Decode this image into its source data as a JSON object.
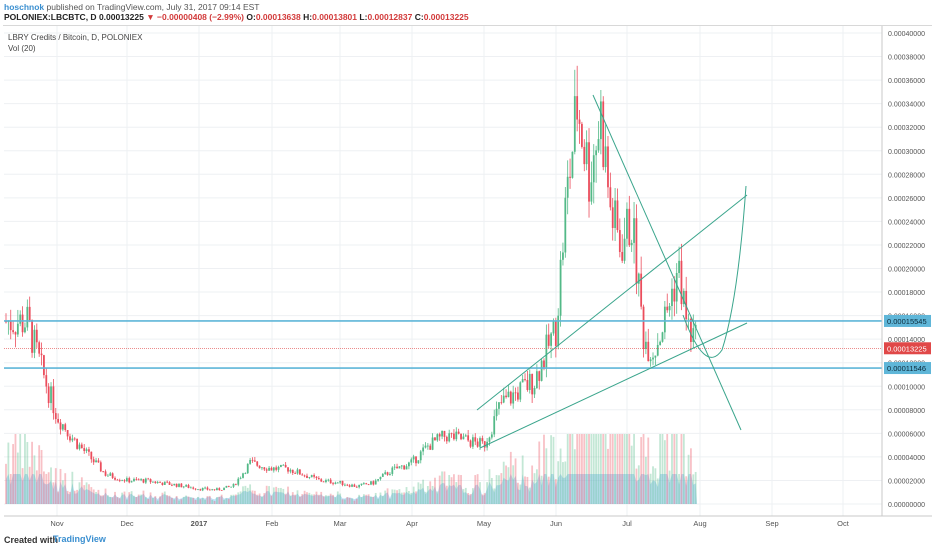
{
  "header": {
    "author": "hoschnok",
    "published_text": "published on TradingView.com, July 31, 2017 09:14 EST",
    "symbol": "POLONIEX:LBCBTC, D",
    "last": "0.00013225",
    "change_arrow": "▼",
    "change": "−0.00000408 (−2.99%)",
    "o_label": "O:",
    "o_value": "0.00013638",
    "h_label": "H:",
    "h_value": "0.00013801",
    "l_label": "L:",
    "l_value": "0.00012837",
    "c_label": "C:",
    "c_value": "0.00013225"
  },
  "legend": {
    "title": "LBRY Credits / Bitcoin, D, POLONIEX",
    "volume": "Vol (20)"
  },
  "footer": {
    "created": "Created with",
    "brand": "TradingView"
  },
  "colors": {
    "up": "#53b987",
    "down": "#eb4d5c",
    "trendline": "#3aa58c",
    "hline": "#5fb6d8",
    "price_marker": "#e04848",
    "volume_area": "#8cc4ee"
  },
  "chart_data": {
    "type": "line",
    "title": "",
    "ylim": [
      0,
      0.0004
    ],
    "y_ticks": [
      "0.00040000",
      "0.00038000",
      "0.00036000",
      "0.00034000",
      "0.00032000",
      "0.00030000",
      "0.00028000",
      "0.00026000",
      "0.00024000",
      "0.00022000",
      "0.00020000",
      "0.00018000",
      "0.00016000",
      "0.00014000",
      "0.00012000",
      "0.00010000",
      "0.00008000",
      "0.00006000",
      "0.00004000",
      "0.00002000",
      "0.00000000"
    ],
    "x_ticks": [
      "Nov",
      "Dec",
      "2017",
      "Feb",
      "Mar",
      "Apr",
      "May",
      "Jun",
      "Jul",
      "Aug",
      "Sep",
      "Oct"
    ],
    "price_labels": {
      "upper_level": "0.00015545",
      "last_price": "0.00013225",
      "lower_level": "0.00011546"
    },
    "series": [
      {
        "x": [
          "Oct 18",
          "Oct 25",
          "Nov 1",
          "Nov 8",
          "Nov 15",
          "Nov 22",
          "Dec 1",
          "Dec 8",
          "Dec 15",
          "Dec 22",
          "Jan 1",
          "Jan 8",
          "Jan 15",
          "Jan 22",
          "Feb 1",
          "Feb 8",
          "Feb 15",
          "Feb 22",
          "Mar 1",
          "Mar 8",
          "Mar 15",
          "Mar 22",
          "Apr 1",
          "Apr 8",
          "Apr 15",
          "Apr 22",
          "May 1",
          "May 8",
          "May 15",
          "May 22",
          "Jun 1",
          "Jun 5",
          "Jun 10",
          "Jun 15",
          "Jun 20",
          "Jun 24",
          "Jun 28",
          "Jul 3",
          "Jul 8",
          "Jul 12",
          "Jul 17",
          "Jul 22",
          "Jul 26",
          "Jul 31"
        ],
        "values": [
          0.000155,
          0.00011,
          7.5e-05,
          5.5e-05,
          4e-05,
          2.5e-05,
          2e-05,
          2e-05,
          1.8e-05,
          1.6e-05,
          1.3e-05,
          1.2e-05,
          1.5e-05,
          3.5e-05,
          3e-05,
          3e-05,
          2.5e-05,
          2e-05,
          1.8e-05,
          1.5e-05,
          1.8e-05,
          2.8e-05,
          3.5e-05,
          5e-05,
          5.8e-05,
          5.5e-05,
          5e-05,
          8.5e-05,
          9.5e-05,
          0.000105,
          0.00015,
          0.00025,
          0.00034,
          0.00028,
          0.00033,
          0.00025,
          0.00022,
          0.00024,
          0.00014,
          0.00013,
          0.00016,
          0.0002,
          0.00015,
          0.00013225
        ]
      }
    ]
  }
}
